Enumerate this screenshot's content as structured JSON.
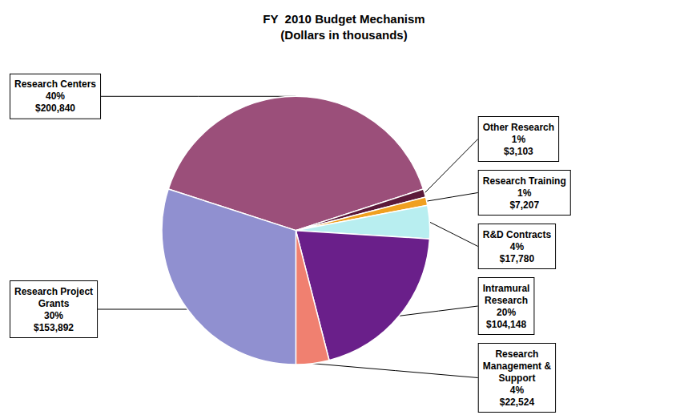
{
  "chart_data": {
    "type": "pie",
    "title": "FY  2010 Budget Mechanism\n(Dollars in thousands)",
    "categories": [
      "Research Centers",
      "Other Research",
      "Research Training",
      "R&D Contracts",
      "Intramural\nResearch",
      "Research\nManagement &\nSupport",
      "Research Project\nGrants"
    ],
    "values": [
      40,
      1,
      1,
      4,
      20,
      4,
      30
    ],
    "value_labels": [
      "40%",
      "1%",
      "1%",
      "4%",
      "20%",
      "4%",
      "30%"
    ],
    "amounts": [
      200840,
      3103,
      7207,
      17780,
      104148,
      22524,
      153892
    ],
    "amount_labels": [
      "$200,840",
      "$3,103",
      "$7,207",
      "$17,780",
      "$104,148",
      "$22,524",
      "$153,892"
    ],
    "colors": [
      "#9B4F7A",
      "#5B1A3A",
      "#F0A020",
      "#B8EEF0",
      "#6A1F8A",
      "#F08070",
      "#9090D0"
    ],
    "data_labels": true
  }
}
